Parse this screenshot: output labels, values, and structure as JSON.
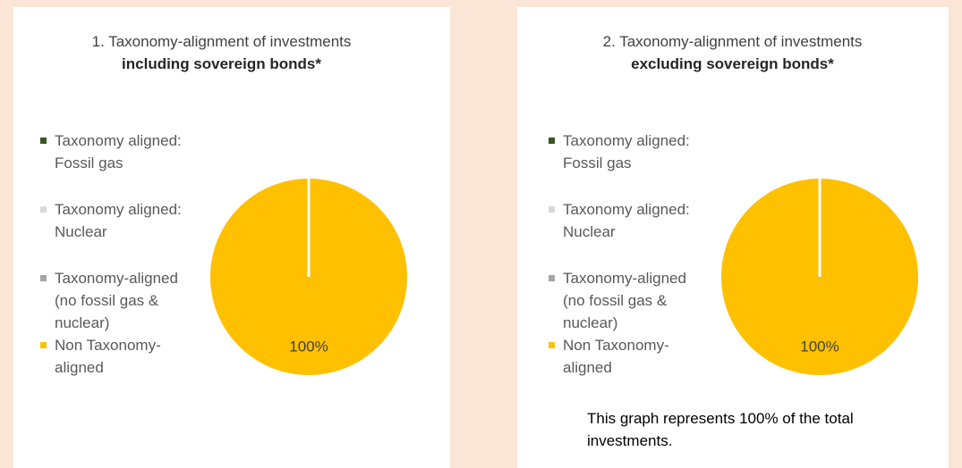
{
  "chart_data": [
    {
      "type": "pie",
      "title": "1. Taxonomy-alignment of investments",
      "subtitle": "including sovereign bonds*",
      "categories": [
        "Taxonomy aligned: Fossil gas",
        "Taxonomy aligned: Nuclear",
        "Taxonomy-aligned (no fossil gas & nuclear)",
        "Non Taxonomy-aligned"
      ],
      "values": [
        0,
        0,
        0,
        100
      ],
      "value_labels": [
        null,
        null,
        null,
        "100%"
      ],
      "colors": [
        "#375623",
        "#d9d9d9",
        "#a6a6a6",
        "#ffc000"
      ],
      "legend": "left"
    },
    {
      "type": "pie",
      "title": "2. Taxonomy-alignment of investments",
      "subtitle": "excluding sovereign bonds*",
      "categories": [
        "Taxonomy aligned: Fossil gas",
        "Taxonomy aligned: Nuclear",
        "Taxonomy-aligned (no fossil gas & nuclear)",
        "Non Taxonomy-aligned"
      ],
      "values": [
        0,
        0,
        0,
        100
      ],
      "value_labels": [
        null,
        null,
        null,
        "100%"
      ],
      "colors": [
        "#375623",
        "#d9d9d9",
        "#a6a6a6",
        "#ffc000"
      ],
      "legend": "left",
      "note": "This graph represents 100% of the total investments."
    }
  ]
}
